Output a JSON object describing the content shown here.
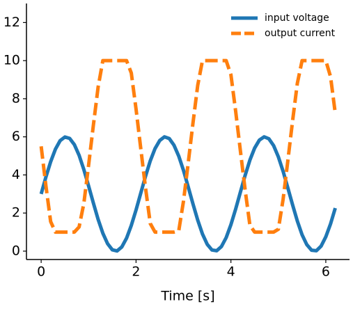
{
  "chart_data": {
    "type": "line",
    "xlabel": "Time [s]",
    "x": [
      0,
      0.1,
      0.2,
      0.3,
      0.4,
      0.5,
      0.6,
      0.7,
      0.8,
      0.9,
      1.0,
      1.1,
      1.2,
      1.3,
      1.4,
      1.5,
      1.6,
      1.7,
      1.8,
      1.9,
      2.0,
      2.1,
      2.2,
      2.3,
      2.4,
      2.5,
      2.6,
      2.7,
      2.8,
      2.9,
      3.0,
      3.1,
      3.2,
      3.3,
      3.4,
      3.5,
      3.6,
      3.7,
      3.8,
      3.9,
      4.0,
      4.1,
      4.2,
      4.3,
      4.4,
      4.5,
      4.6,
      4.7,
      4.8,
      4.9,
      5.0,
      5.1,
      5.2,
      5.3,
      5.4,
      5.5,
      5.6,
      5.7,
      5.8,
      5.9,
      6.0,
      6.1,
      6.2
    ],
    "series": [
      {
        "name": "input voltage",
        "color": "#1f77b4",
        "dash": false,
        "values": [
          3,
          3.89,
          4.69,
          5.35,
          5.8,
          5.99,
          5.92,
          5.59,
          5.03,
          4.28,
          3.42,
          2.53,
          1.67,
          0.94,
          0.39,
          0.07,
          0.01,
          0.22,
          0.68,
          1.35,
          2.16,
          3.05,
          3.93,
          4.74,
          5.38,
          5.81,
          6.0,
          5.91,
          5.56,
          4.99,
          4.24,
          3.37,
          2.48,
          1.63,
          0.9,
          0.36,
          0.06,
          0.02,
          0.24,
          0.71,
          1.39,
          2.21,
          3.1,
          3.98,
          4.78,
          5.41,
          5.83,
          6.0,
          5.9,
          5.54,
          4.95,
          4.19,
          3.32,
          2.43,
          1.58,
          0.86,
          0.34,
          0.05,
          0.02,
          0.26,
          0.75,
          1.43,
          2.26
        ]
      },
      {
        "name": "output current",
        "color": "#ff7f0e",
        "dash": true,
        "values": [
          5.5,
          3.43,
          1.55,
          1,
          1,
          1,
          1,
          1,
          1.27,
          2.51,
          4.51,
          6.6,
          8.6,
          10,
          10,
          10,
          10,
          10,
          10,
          9.35,
          7.46,
          5.38,
          3.32,
          1.45,
          1,
          1,
          1,
          1,
          1,
          1.06,
          2.62,
          4.63,
          6.72,
          8.7,
          10,
          10,
          10,
          10,
          10,
          10,
          9.26,
          7.34,
          5.26,
          3.21,
          1.36,
          1,
          1,
          1,
          1,
          1,
          1.15,
          2.72,
          4.75,
          6.84,
          8.81,
          10,
          10,
          10,
          10,
          10,
          10,
          9.16,
          7.23
        ]
      }
    ],
    "xlim": [
      -0.31,
      6.5
    ],
    "ylim": [
      -0.44,
      13.0
    ],
    "xticks": [
      0,
      2,
      4,
      6
    ],
    "yticks": [
      0,
      2,
      4,
      6,
      8,
      10,
      12
    ],
    "grid": false,
    "legend": "upper right"
  }
}
